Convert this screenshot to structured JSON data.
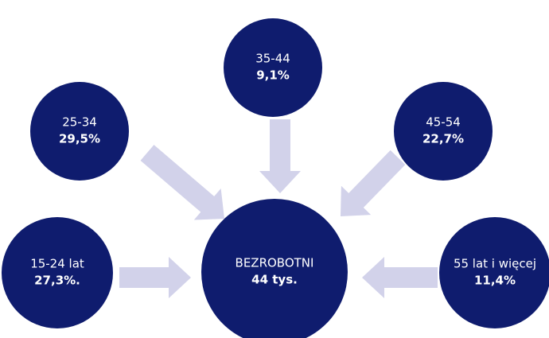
{
  "center": {
    "label": "BEZROBOTNI",
    "value": "44 tys."
  },
  "nodes": [
    {
      "label": "15-24 lat",
      "value": "27,3%."
    },
    {
      "label": "25-34",
      "value": "29,5%"
    },
    {
      "label": "35-44",
      "value": "9,1%"
    },
    {
      "label": "45-54",
      "value": "22,7%"
    },
    {
      "label": "55 lat i więcej",
      "value": "11,4%"
    }
  ]
}
